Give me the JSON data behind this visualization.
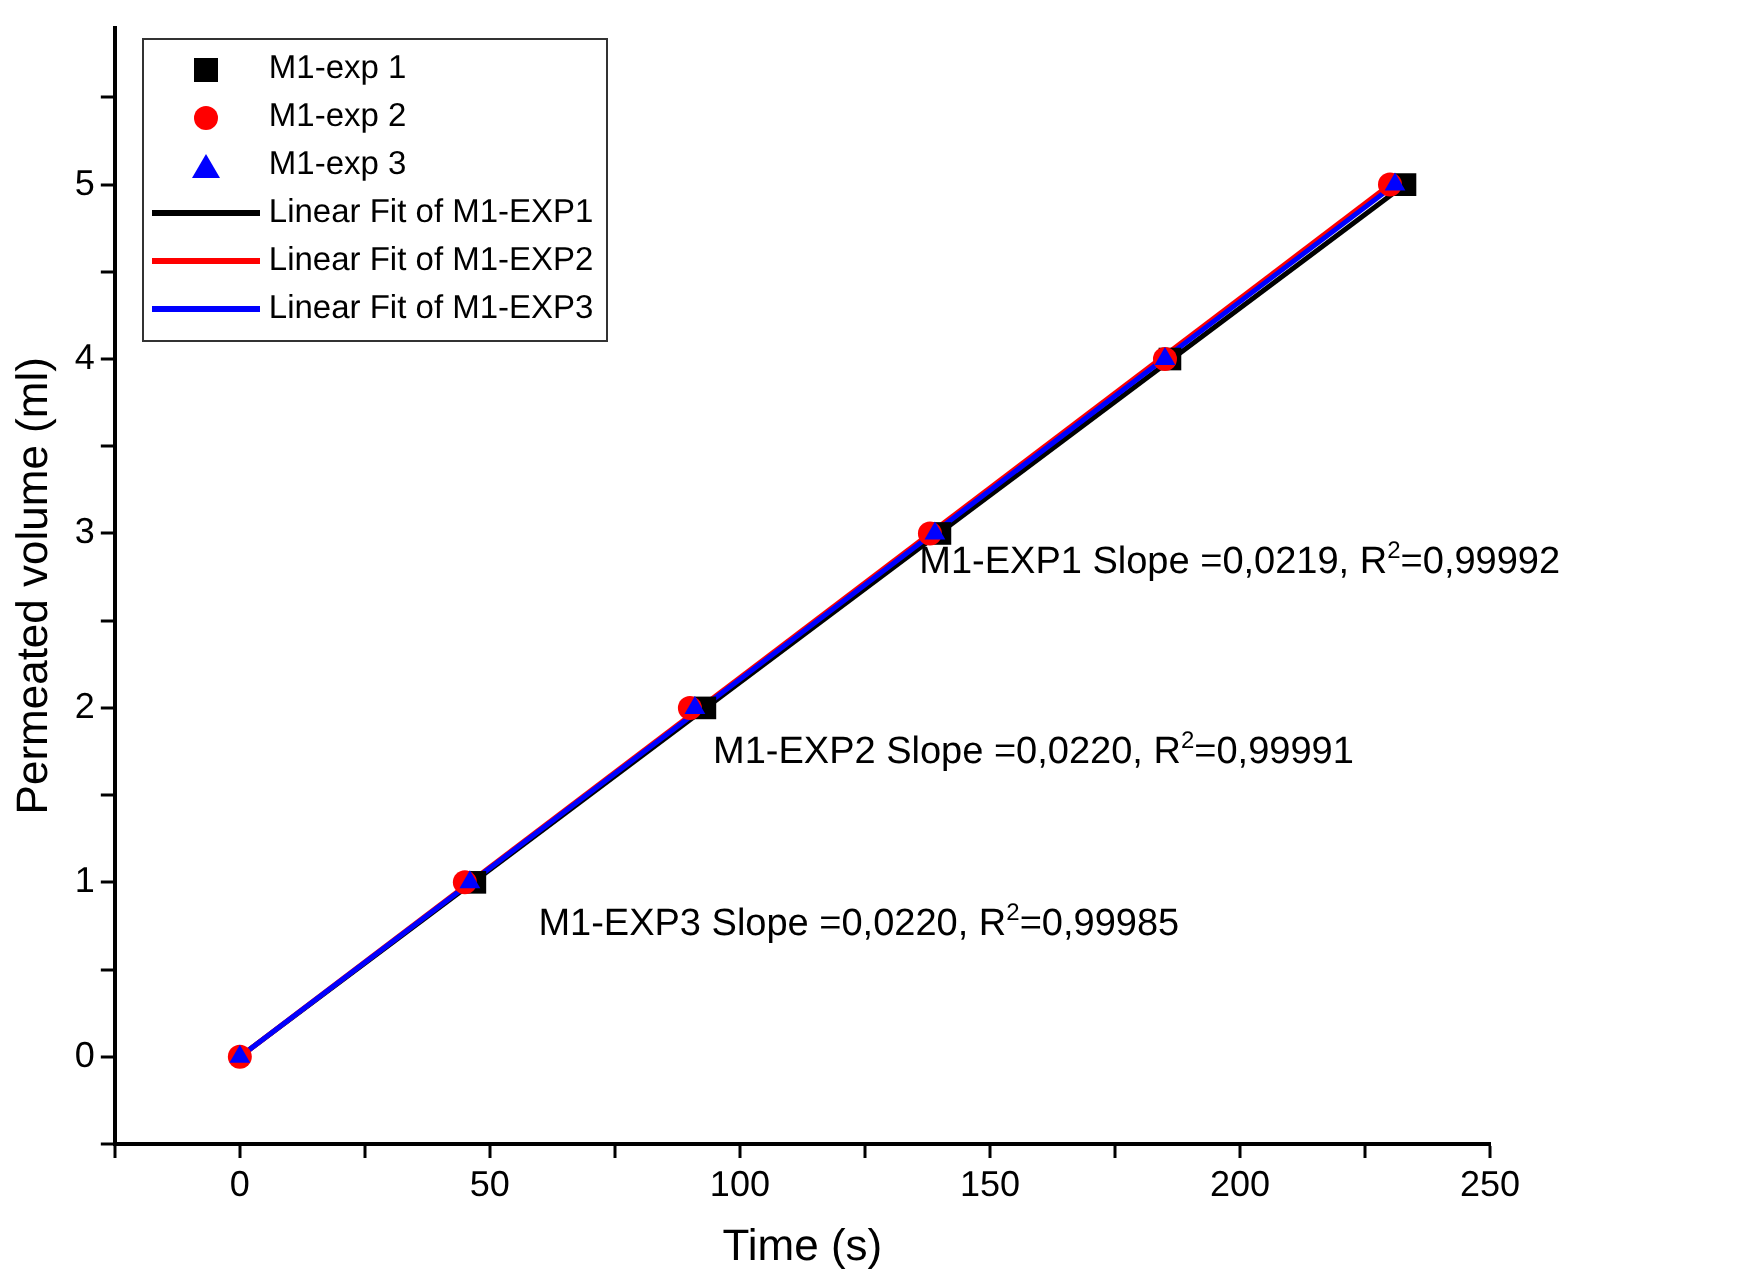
{
  "chart_data": {
    "type": "scatter",
    "xlabel": "Time (s)",
    "ylabel": "Permeated volume (ml)",
    "xlim": [
      -25,
      250
    ],
    "xticks": [
      {
        "value": -25,
        "label": null
      },
      0,
      {
        "value": 25,
        "label": null
      },
      50,
      {
        "value": 75,
        "label": null
      },
      100,
      {
        "value": 125,
        "label": null
      },
      150,
      {
        "value": 175,
        "label": null
      },
      200,
      {
        "value": 225,
        "label": null
      },
      250
    ],
    "ylim": [
      -0.5,
      5.9
    ],
    "yticks": [
      {
        "value": -0.5,
        "label": null
      },
      0,
      {
        "value": 0.5,
        "label": null
      },
      1,
      {
        "value": 1.5,
        "label": null
      },
      2,
      {
        "value": 2.5,
        "label": null
      },
      3,
      {
        "value": 3.5,
        "label": null
      },
      4,
      {
        "value": 4.5,
        "label": null
      },
      5,
      {
        "value": 5.5,
        "label": null
      }
    ],
    "grid": false,
    "legend": "top left",
    "series": [
      {
        "name": "M1-exp 1",
        "marker": "square",
        "color": "#000000",
        "x": [
          null,
          47,
          93,
          140,
          186,
          233
        ],
        "values": [
          null,
          1,
          2,
          3,
          4,
          5
        ]
      },
      {
        "name": "M1-exp 2",
        "marker": "circle",
        "color": "#ff0000",
        "x": [
          0,
          45,
          90,
          138,
          185,
          230
        ],
        "values": [
          0,
          1,
          2,
          3,
          4,
          5
        ]
      },
      {
        "name": "M1-exp 3",
        "marker": "triangle",
        "color": "#0000ff",
        "x": [
          0,
          46,
          91,
          139,
          185,
          231
        ],
        "values": [
          0,
          1,
          2,
          3,
          4,
          5
        ]
      },
      {
        "name": "Linear Fit of M1-EXP1",
        "type": "line",
        "marker": "none",
        "color": "#000000",
        "x": [
          0,
          233
        ],
        "values": [
          0,
          5
        ]
      },
      {
        "name": "Linear Fit of M1-EXP2",
        "type": "line",
        "marker": "none",
        "color": "#ff0000",
        "x": [
          0,
          230
        ],
        "values": [
          0,
          5
        ]
      },
      {
        "name": "Linear Fit of M1-EXP3",
        "type": "line",
        "marker": "none",
        "color": "#0000ff",
        "x": [
          0,
          231
        ],
        "values": [
          0,
          5
        ]
      }
    ],
    "annotations": [
      "M1-EXP1 Slope =0,0219, R$^{2}$=0,99992",
      "M1-EXP2 Slope =0,0220, R$^{2}$=0,99991",
      "M1-EXP3 Slope =0,0220, R$^{2}$=0,99985"
    ]
  }
}
